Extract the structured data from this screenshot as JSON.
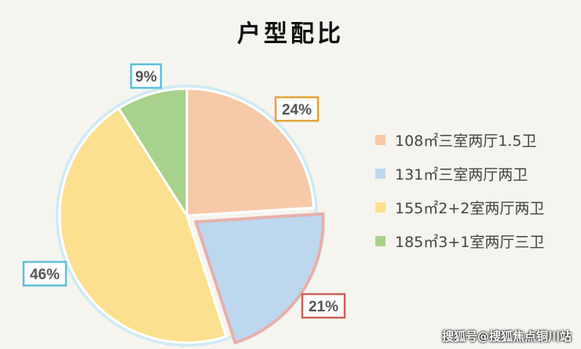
{
  "chart_data": {
    "type": "pie",
    "title": "户型配比",
    "categories": [
      "108㎡三室两厅1.5卫",
      "131㎡三室两厅两卫",
      "155㎡2+2室两厅两卫",
      "185㎡3+1室两厅三卫"
    ],
    "values": [
      24,
      21,
      46,
      9
    ],
    "labels": [
      "24%",
      "21%",
      "46%",
      "9%"
    ],
    "colors": [
      "#f6c9a8",
      "#bdd7ef",
      "#fbe08f",
      "#a9d18e"
    ],
    "label_border_colors": [
      "#e0a535",
      "#c9625a",
      "#5cc0d8",
      "#5cc0d8"
    ],
    "exploded": [
      false,
      true,
      false,
      false
    ],
    "legend_position": "right"
  },
  "watermark": "搜狐号@搜狐焦点铜川站"
}
